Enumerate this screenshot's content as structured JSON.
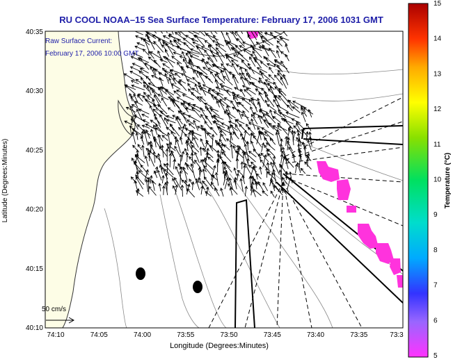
{
  "title": "RU COOL  NOAA–15  Sea Surface Temperature:  February 17, 2006 1031 GMT",
  "overlay": {
    "line1": "Raw Surface Current:",
    "line2": "February 17, 2006 10:00 GMT"
  },
  "scale_label": "50 cm/s",
  "x_axis": {
    "label": "Longitude (Degrees:Minutes)",
    "ticks": [
      "74:10",
      "74:05",
      "74:00",
      "73:55",
      "73:50",
      "73:45",
      "73:40",
      "73:35",
      "73:3"
    ]
  },
  "y_axis": {
    "label": "Latitude (Degrees:Minutes)",
    "ticks": [
      "40:35",
      "40:30",
      "40:25",
      "40:20",
      "40:15",
      "40:10"
    ]
  },
  "colorbar": {
    "label": "Temperature (°C)",
    "ticks": [
      "15",
      "14",
      "13",
      "12",
      "11",
      "10",
      "9",
      "8",
      "7",
      "6",
      "5"
    ]
  },
  "colors": {
    "title": "#1e1ea8",
    "overlay_text": "#1e1ea8",
    "land": "#fdfde6",
    "sst_patch": "#ff33dd"
  }
}
